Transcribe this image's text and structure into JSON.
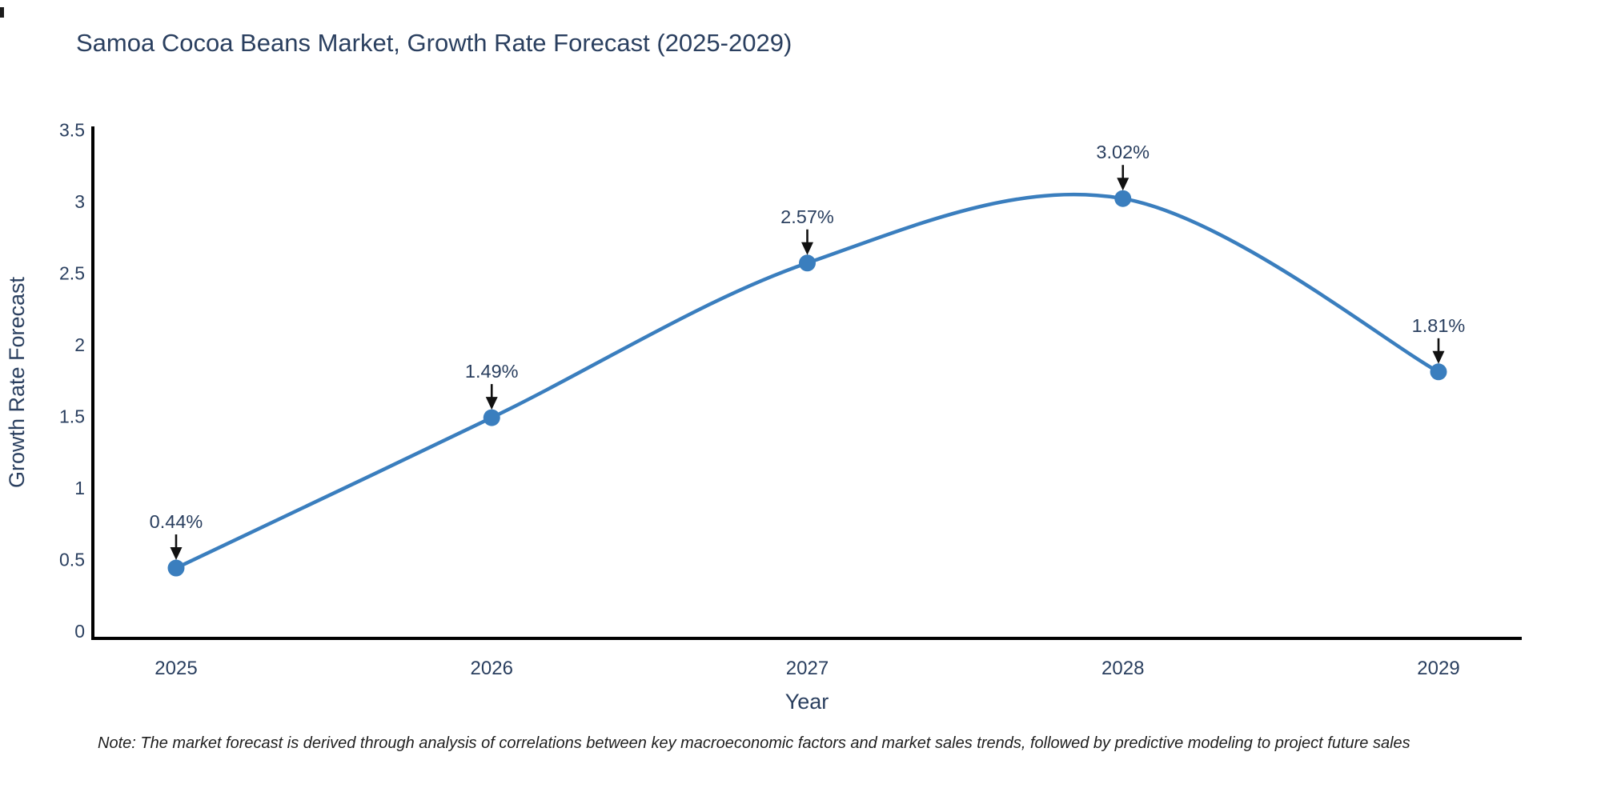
{
  "title": "Samoa Cocoa Beans Market, Growth Rate Forecast (2025-2029)",
  "note": "Note: The market forecast is derived through analysis of correlations between key macroeconomic factors and market sales trends, followed by predictive modeling to project future sales",
  "colors": {
    "line": "#3a7ebe",
    "marker": "#3a7ebe",
    "axis": "#000000",
    "arrow": "#111111",
    "title": "#2a3f5f",
    "tick": "#2a3f5f",
    "note": "#1f1f1f"
  },
  "chart_data": {
    "type": "line",
    "line_shape": "spline",
    "markers": true,
    "grid": false,
    "legend": false,
    "title": "Samoa Cocoa Beans Market, Growth Rate Forecast (2025-2029)",
    "xlabel": "Year",
    "ylabel": "Growth Rate Forecast",
    "x": [
      2025,
      2026,
      2027,
      2028,
      2029
    ],
    "values": [
      0.44,
      1.49,
      2.57,
      3.02,
      1.81
    ],
    "point_labels": [
      "0.44%",
      "1.49%",
      "2.57%",
      "3.02%",
      "1.81%"
    ],
    "xtick_labels": [
      "2025",
      "2026",
      "2027",
      "2028",
      "2029"
    ],
    "yticks": [
      0,
      0.5,
      1,
      1.5,
      2,
      2.5,
      3,
      3.5
    ],
    "ytick_labels": [
      "0",
      "0.5",
      "1",
      "1.5",
      "2",
      "2.5",
      "3",
      "3.5"
    ],
    "ylim": [
      0,
      3.5
    ],
    "xlim": [
      2025,
      2029
    ]
  }
}
